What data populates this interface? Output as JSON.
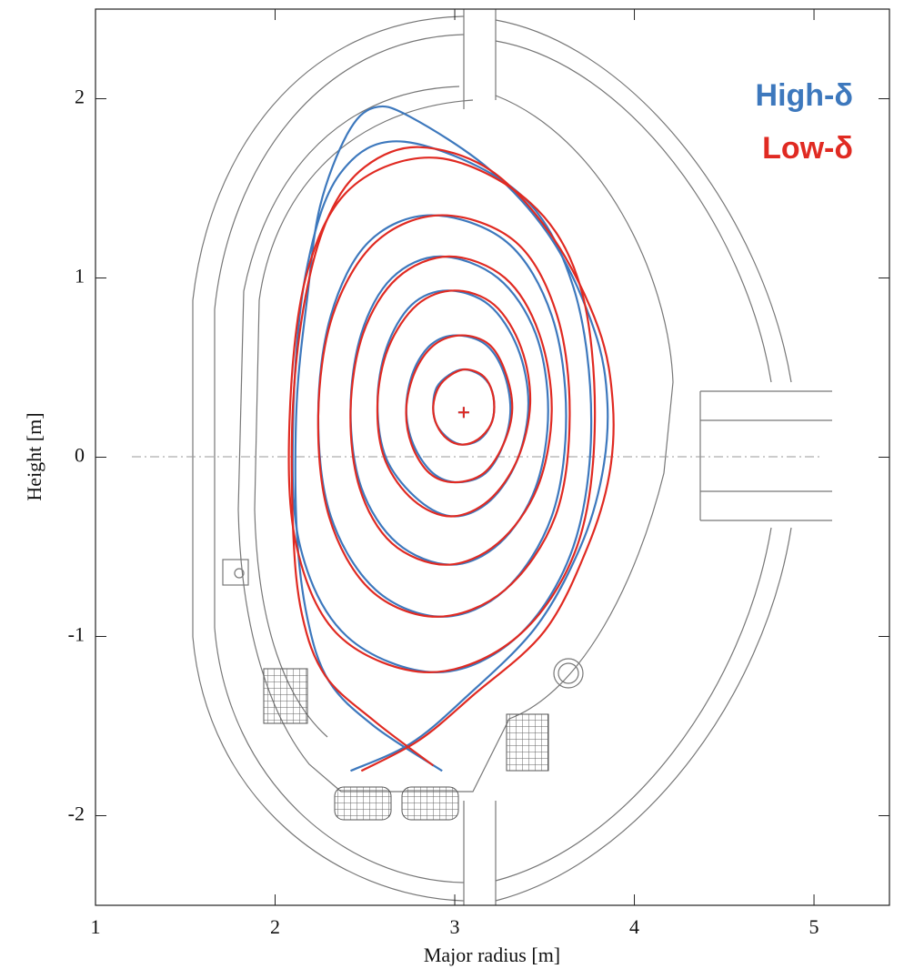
{
  "chart_data": {
    "type": "contour",
    "xlabel": "Major radius [m]",
    "ylabel": "Height [m]",
    "xlim": [
      1,
      5.42
    ],
    "ylim": [
      -2.5,
      2.5
    ],
    "xticks": [
      1,
      2,
      3,
      4,
      5
    ],
    "yticks": [
      -2,
      -1,
      0,
      1,
      2
    ],
    "legend": "upper right",
    "series": [
      {
        "name": "High-δ",
        "color": "#3d78bd",
        "axis_point": {
          "x": 3.05,
          "y": 0.25
        },
        "contours": [
          {
            "closed": true,
            "x": [
              3.22,
              3.2,
              3.14,
              3.05,
              2.97,
              2.9,
              2.88,
              2.9,
              2.97,
              3.05,
              3.14,
              3.2
            ],
            "y": [
              0.28,
              0.39,
              0.46,
              0.49,
              0.46,
              0.39,
              0.28,
              0.18,
              0.1,
              0.07,
              0.1,
              0.18
            ]
          },
          {
            "closed": true,
            "x": [
              3.31,
              3.27,
              3.17,
              3.01,
              2.87,
              2.77,
              2.73,
              2.77,
              2.88,
              3.02,
              3.17,
              3.27
            ],
            "y": [
              0.27,
              0.48,
              0.63,
              0.68,
              0.63,
              0.48,
              0.27,
              0.07,
              -0.09,
              -0.14,
              -0.09,
              0.07
            ]
          },
          {
            "closed": true,
            "x": [
              3.41,
              3.35,
              3.19,
              2.96,
              2.76,
              2.62,
              2.57,
              2.62,
              2.8,
              3.0,
              3.2,
              3.35
            ],
            "y": [
              0.3,
              0.61,
              0.85,
              0.93,
              0.85,
              0.61,
              0.3,
              -0.01,
              -0.24,
              -0.33,
              -0.24,
              -0.01
            ]
          },
          {
            "closed": true,
            "x": [
              3.52,
              3.45,
              3.24,
              2.92,
              2.65,
              2.48,
              2.42,
              2.48,
              2.68,
              2.98,
              3.25,
              3.45
            ],
            "y": [
              0.26,
              0.69,
              1.0,
              1.12,
              1.0,
              0.69,
              0.26,
              -0.17,
              -0.48,
              -0.6,
              -0.48,
              -0.17
            ]
          },
          {
            "closed": true,
            "x": [
              3.62,
              3.54,
              3.29,
              2.87,
              2.52,
              2.31,
              2.24,
              2.31,
              2.56,
              2.93,
              3.28,
              3.54
            ],
            "y": [
              0.23,
              0.79,
              1.2,
              1.35,
              1.2,
              0.79,
              0.23,
              -0.33,
              -0.74,
              -0.89,
              -0.74,
              -0.33
            ]
          },
          {
            "closed": true,
            "x": [
              3.76,
              3.66,
              3.35,
              2.72,
              2.36,
              2.17,
              2.1,
              2.14,
              2.4,
              2.9,
              3.35,
              3.66
            ],
            "y": [
              0.2,
              0.95,
              1.48,
              1.76,
              1.58,
              1.02,
              0.2,
              -0.5,
              -1.0,
              -1.2,
              -1.0,
              -0.5
            ]
          },
          {
            "closed": false,
            "x": [
              2.93,
              2.55,
              2.3,
              2.18,
              2.12,
              2.12,
              2.18,
              2.25,
              2.4,
              2.55,
              2.75,
              3.2,
              3.55,
              3.78,
              3.85,
              3.82,
              3.7,
              3.45,
              3.05,
              2.75,
              2.42
            ],
            "y": [
              -1.75,
              -1.5,
              -1.25,
              -0.9,
              -0.4,
              0.3,
              0.9,
              1.4,
              1.8,
              1.95,
              1.9,
              1.6,
              1.2,
              0.7,
              0.3,
              -0.1,
              -0.5,
              -0.95,
              -1.35,
              -1.6,
              -1.75
            ]
          }
        ]
      },
      {
        "name": "Low-δ",
        "color": "#e02a22",
        "axis_point": {
          "x": 3.05,
          "y": 0.25
        },
        "contours": [
          {
            "closed": true,
            "x": [
              3.22,
              3.2,
              3.15,
              3.06,
              2.98,
              2.91,
              2.88,
              2.9,
              2.96,
              3.04,
              3.13,
              3.2
            ],
            "y": [
              0.28,
              0.39,
              0.46,
              0.49,
              0.46,
              0.39,
              0.28,
              0.18,
              0.1,
              0.07,
              0.1,
              0.18
            ]
          },
          {
            "closed": true,
            "x": [
              3.32,
              3.28,
              3.19,
              3.04,
              2.89,
              2.78,
              2.73,
              2.76,
              2.86,
              3.0,
              3.16,
              3.27
            ],
            "y": [
              0.27,
              0.48,
              0.63,
              0.68,
              0.63,
              0.48,
              0.27,
              0.07,
              -0.09,
              -0.14,
              -0.09,
              0.07
            ]
          },
          {
            "closed": true,
            "x": [
              3.42,
              3.37,
              3.22,
              3.0,
              2.79,
              2.63,
              2.57,
              2.61,
              2.77,
              2.98,
              3.19,
              3.35
            ],
            "y": [
              0.3,
              0.61,
              0.85,
              0.93,
              0.85,
              0.61,
              0.3,
              -0.01,
              -0.24,
              -0.33,
              -0.24,
              -0.01
            ]
          },
          {
            "closed": true,
            "x": [
              3.54,
              3.47,
              3.28,
              2.97,
              2.68,
              2.49,
              2.42,
              2.47,
              2.65,
              2.95,
              3.24,
              3.46
            ],
            "y": [
              0.26,
              0.69,
              1.0,
              1.12,
              1.0,
              0.69,
              0.26,
              -0.17,
              -0.48,
              -0.6,
              -0.48,
              -0.17
            ]
          },
          {
            "closed": true,
            "x": [
              3.64,
              3.57,
              3.34,
              2.93,
              2.56,
              2.32,
              2.24,
              2.3,
              2.53,
              2.9,
              3.28,
              3.56
            ],
            "y": [
              0.23,
              0.79,
              1.2,
              1.35,
              1.2,
              0.79,
              0.23,
              -0.33,
              -0.74,
              -0.89,
              -0.74,
              -0.33
            ]
          },
          {
            "closed": true,
            "x": [
              3.78,
              3.7,
              3.42,
              2.9,
              2.42,
              2.17,
              2.08,
              2.12,
              2.36,
              2.86,
              3.35,
              3.68
            ],
            "y": [
              0.2,
              0.95,
              1.42,
              1.67,
              1.5,
              1.0,
              0.2,
              -0.5,
              -1.0,
              -1.2,
              -1.0,
              -0.5
            ]
          },
          {
            "closed": false,
            "x": [
              2.88,
              2.55,
              2.28,
              2.15,
              2.1,
              2.1,
              2.17,
              2.3,
              2.5,
              2.8,
              3.2,
              3.55,
              3.8,
              3.88,
              3.86,
              3.74,
              3.5,
              3.1,
              2.8,
              2.48
            ],
            "y": [
              -1.72,
              -1.47,
              -1.22,
              -0.88,
              -0.4,
              0.3,
              0.9,
              1.35,
              1.62,
              1.73,
              1.6,
              1.22,
              0.72,
              0.3,
              -0.1,
              -0.5,
              -0.97,
              -1.33,
              -1.58,
              -1.75
            ]
          }
        ]
      }
    ]
  }
}
